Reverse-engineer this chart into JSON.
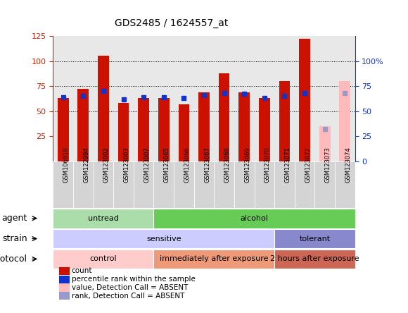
{
  "title": "GDS2485 / 1624557_at",
  "samples": [
    "GSM106918",
    "GSM122994",
    "GSM123002",
    "GSM123003",
    "GSM123007",
    "GSM123065",
    "GSM123066",
    "GSM123067",
    "GSM123068",
    "GSM123069",
    "GSM123070",
    "GSM123071",
    "GSM123072",
    "GSM123073",
    "GSM123074"
  ],
  "count_values": [
    63,
    72,
    105,
    58,
    63,
    63,
    57,
    69,
    88,
    69,
    63,
    80,
    122,
    35,
    80
  ],
  "percentile_values": [
    64,
    65,
    70,
    62,
    64,
    64,
    63,
    66,
    68,
    67,
    63,
    65,
    68,
    32,
    68
  ],
  "absent_flags": [
    false,
    false,
    false,
    false,
    false,
    false,
    false,
    false,
    false,
    false,
    false,
    false,
    false,
    true,
    true
  ],
  "bar_color_present": "#cc1100",
  "bar_color_absent": "#ffbbbb",
  "dot_color_present": "#1133cc",
  "dot_color_absent": "#9999cc",
  "left_axis_color": "#cc2200",
  "right_axis_color": "#1133cc",
  "agent_bands": [
    {
      "label": "untread",
      "start": 0,
      "end": 5,
      "color": "#aaddaa"
    },
    {
      "label": "alcohol",
      "start": 5,
      "end": 15,
      "color": "#66cc55"
    }
  ],
  "strain_bands": [
    {
      "label": "sensitive",
      "start": 0,
      "end": 11,
      "color": "#ccccff"
    },
    {
      "label": "tolerant",
      "start": 11,
      "end": 15,
      "color": "#8888cc"
    }
  ],
  "protocol_bands": [
    {
      "label": "control",
      "start": 0,
      "end": 5,
      "color": "#ffcccc"
    },
    {
      "label": "immediately after exposure",
      "start": 5,
      "end": 11,
      "color": "#ee9977"
    },
    {
      "label": "2 hours after exposure",
      "start": 11,
      "end": 15,
      "color": "#cc6655"
    }
  ],
  "legend_labels": [
    "count",
    "percentile rank within the sample",
    "value, Detection Call = ABSENT",
    "rank, Detection Call = ABSENT"
  ],
  "legend_colors": [
    "#cc1100",
    "#1133cc",
    "#ffbbbb",
    "#9999cc"
  ],
  "plot_bg": "#e8e8e8",
  "title_fontsize": 10
}
